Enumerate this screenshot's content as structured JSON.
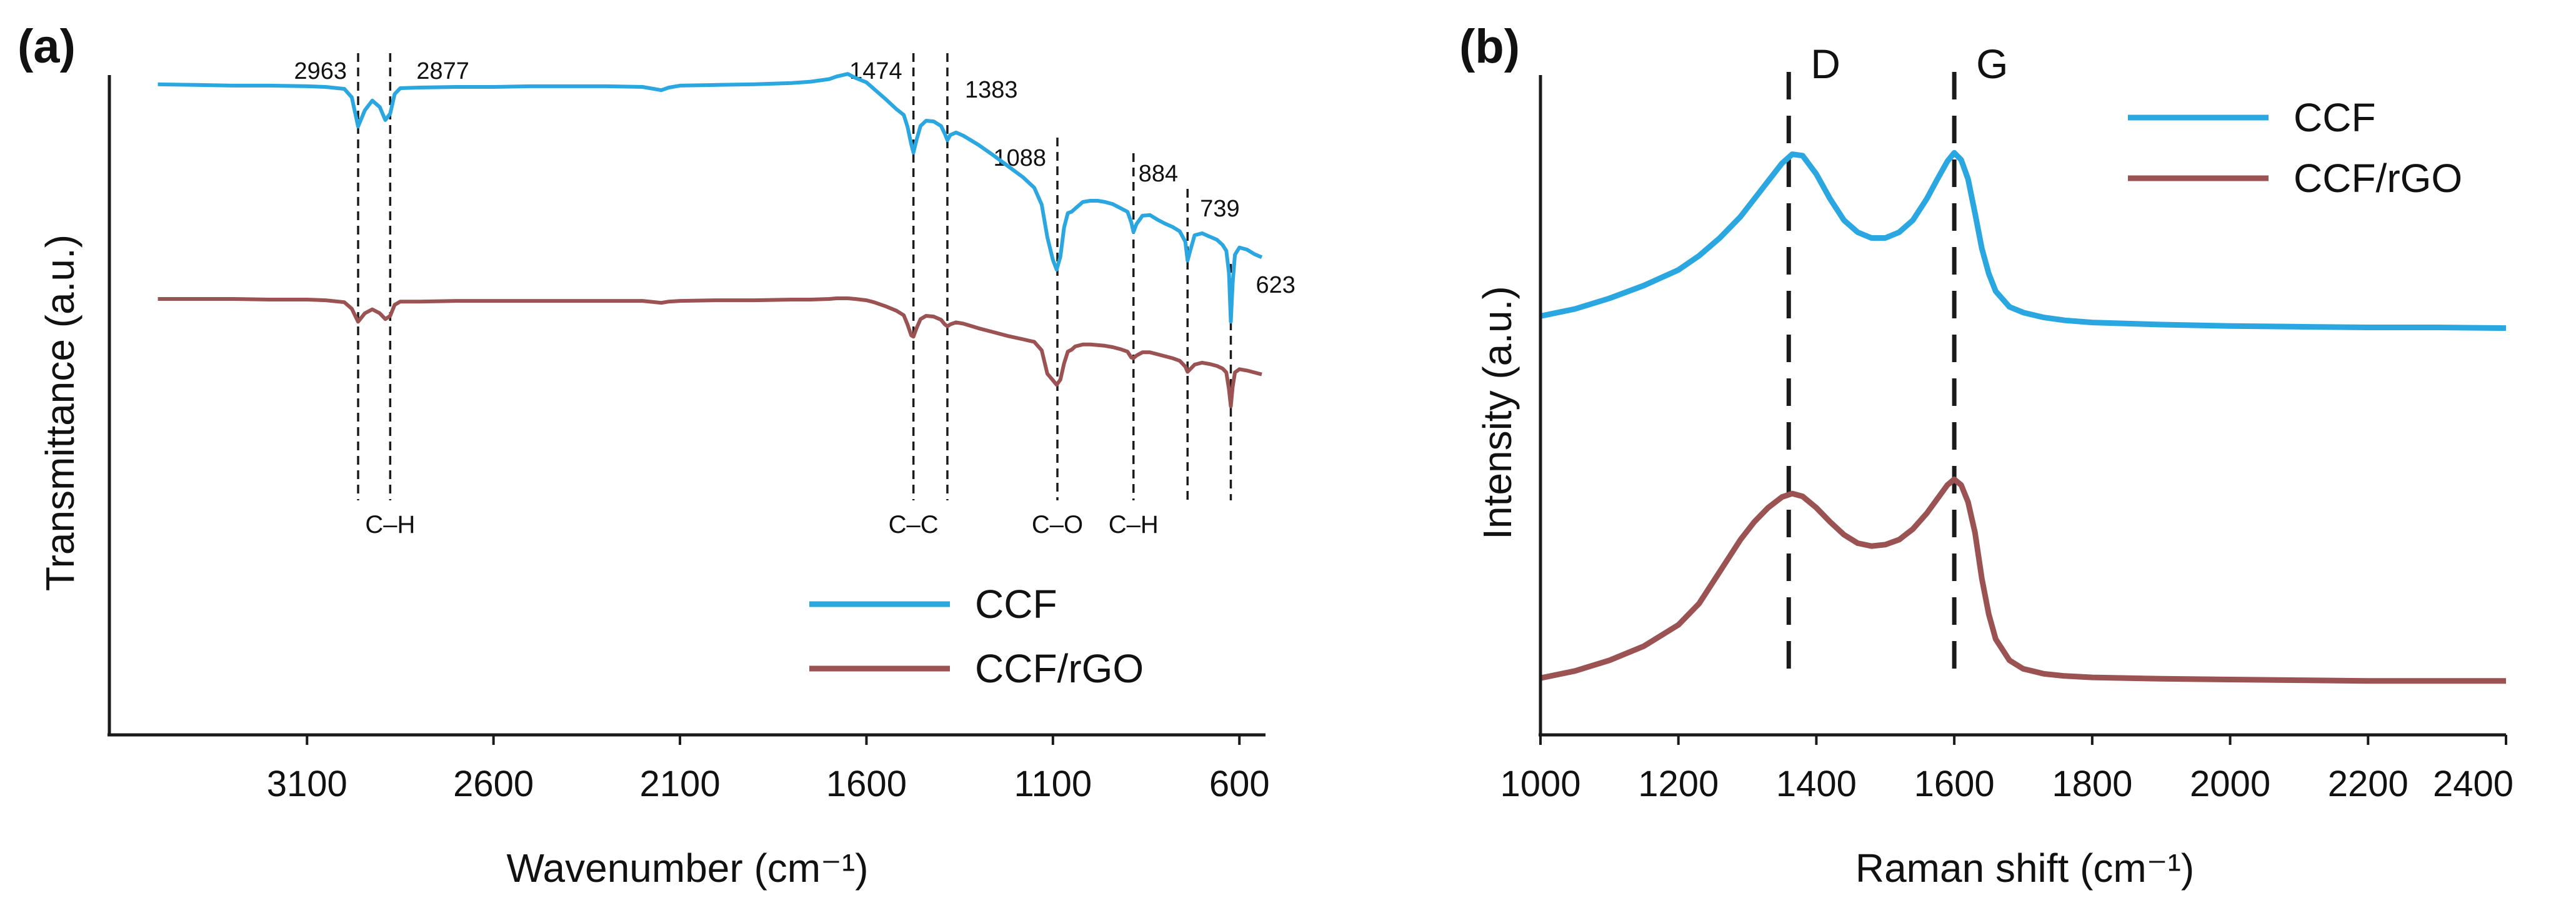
{
  "figure": {
    "colors": {
      "ccf": "#2aa7e0",
      "ccf_rgo": "#9a5252",
      "axis": "#1a1a1a"
    }
  },
  "chart_data": [
    {
      "panel": "(a)",
      "type": "line",
      "title": "",
      "xlabel": "Wavenumber (cm⁻¹)",
      "ylabel": "Transmittance (a.u.)",
      "xlim": [
        3500,
        500
      ],
      "xreversed": true,
      "ylim": [
        0,
        100
      ],
      "y_ticks_shown": false,
      "xticks": [
        3100,
        2600,
        2100,
        1600,
        1100,
        600
      ],
      "xtick_labels": [
        "3100",
        "2600",
        "2100",
        "1600",
        "1100",
        "600"
      ],
      "legend": {
        "position": "bottom-right",
        "entries": [
          "CCF",
          "CCF/rGO"
        ]
      },
      "series": [
        {
          "name": "CCF",
          "color": "#2aa7e0",
          "x": [
            3500,
            3400,
            3300,
            3200,
            3100,
            3050,
            3000,
            2980,
            2963,
            2945,
            2925,
            2905,
            2890,
            2877,
            2865,
            2850,
            2800,
            2700,
            2600,
            2500,
            2400,
            2300,
            2200,
            2150,
            2130,
            2100,
            2000,
            1900,
            1800,
            1750,
            1700,
            1680,
            1650,
            1630,
            1600,
            1580,
            1550,
            1520,
            1500,
            1490,
            1480,
            1474,
            1465,
            1455,
            1440,
            1420,
            1400,
            1390,
            1383,
            1375,
            1360,
            1340,
            1300,
            1260,
            1220,
            1180,
            1150,
            1130,
            1115,
            1100,
            1090,
            1080,
            1070,
            1060,
            1050,
            1040,
            1020,
            1000,
            980,
            960,
            940,
            920,
            900,
            890,
            884,
            876,
            860,
            840,
            820,
            800,
            780,
            760,
            745,
            739,
            732,
            720,
            700,
            680,
            660,
            645,
            635,
            628,
            623,
            618,
            612,
            600,
            580,
            560,
            540
          ],
          "y": [
            88.0,
            87.9,
            87.8,
            87.8,
            87.7,
            87.6,
            87.3,
            86.0,
            81.5,
            84.0,
            85.5,
            84.5,
            82.5,
            83.5,
            86.5,
            87.4,
            87.5,
            87.6,
            87.6,
            87.7,
            87.7,
            87.7,
            87.6,
            87.1,
            87.5,
            87.8,
            87.9,
            88.0,
            88.2,
            88.4,
            88.8,
            89.2,
            89.6,
            89.0,
            88.3,
            87.3,
            85.8,
            84.2,
            83.3,
            81.5,
            78.8,
            77.5,
            79.6,
            81.6,
            82.4,
            82.3,
            81.6,
            80.4,
            79.4,
            80.2,
            80.6,
            80.1,
            78.7,
            77.1,
            75.4,
            73.7,
            72.1,
            69.5,
            64.5,
            61.0,
            59.5,
            61.5,
            66.0,
            68.2,
            68.4,
            68.9,
            69.9,
            70.1,
            70.1,
            69.9,
            69.6,
            69.0,
            68.4,
            66.8,
            65.3,
            66.5,
            67.8,
            67.9,
            67.2,
            66.6,
            66.1,
            65.4,
            63.8,
            60.9,
            62.4,
            64.8,
            65.1,
            64.6,
            64.1,
            63.3,
            62.4,
            59.0,
            51.5,
            57.5,
            61.8,
            62.9,
            62.6,
            61.9,
            61.4
          ]
        },
        {
          "name": "CCF/rGO",
          "color": "#9a5252",
          "x": [
            3500,
            3400,
            3300,
            3200,
            3100,
            3050,
            3000,
            2980,
            2963,
            2945,
            2925,
            2905,
            2890,
            2877,
            2865,
            2850,
            2800,
            2700,
            2600,
            2500,
            2400,
            2300,
            2200,
            2150,
            2130,
            2100,
            2000,
            1900,
            1800,
            1750,
            1700,
            1680,
            1650,
            1630,
            1600,
            1580,
            1550,
            1520,
            1500,
            1490,
            1480,
            1474,
            1465,
            1455,
            1440,
            1420,
            1400,
            1390,
            1383,
            1375,
            1360,
            1340,
            1300,
            1260,
            1220,
            1180,
            1150,
            1130,
            1115,
            1100,
            1090,
            1080,
            1070,
            1060,
            1050,
            1040,
            1020,
            1000,
            980,
            960,
            940,
            920,
            900,
            890,
            884,
            876,
            860,
            840,
            820,
            800,
            780,
            760,
            745,
            739,
            732,
            720,
            700,
            680,
            660,
            645,
            635,
            628,
            623,
            618,
            612,
            600,
            580,
            560,
            540
          ],
          "y": [
            55.0,
            55.0,
            55.0,
            54.9,
            54.9,
            54.8,
            54.5,
            53.5,
            51.5,
            52.8,
            53.4,
            52.8,
            51.9,
            52.4,
            54.1,
            54.6,
            54.6,
            54.7,
            54.7,
            54.7,
            54.7,
            54.7,
            54.7,
            54.4,
            54.6,
            54.7,
            54.8,
            54.8,
            54.9,
            54.9,
            55.0,
            55.1,
            55.1,
            55.0,
            54.8,
            54.5,
            53.9,
            53.2,
            52.5,
            51.1,
            49.4,
            49.2,
            50.6,
            51.9,
            52.4,
            52.3,
            51.8,
            51.1,
            50.8,
            51.1,
            51.4,
            51.2,
            50.5,
            49.9,
            49.3,
            48.8,
            48.4,
            47.1,
            43.5,
            42.5,
            41.8,
            42.6,
            45.1,
            46.9,
            47.2,
            47.7,
            48.0,
            48.0,
            47.9,
            47.8,
            47.6,
            47.3,
            46.9,
            46.0,
            45.9,
            46.3,
            46.8,
            46.8,
            46.5,
            46.2,
            45.9,
            45.5,
            44.6,
            43.8,
            44.2,
            44.9,
            45.2,
            45.0,
            44.7,
            44.3,
            43.7,
            41.1,
            38.5,
            41.5,
            43.7,
            44.2,
            44.0,
            43.7,
            43.4
          ]
        }
      ],
      "peak_markers": [
        {
          "x": 2963,
          "label": "2963"
        },
        {
          "x": 2877,
          "label": "2877"
        },
        {
          "x": 1474,
          "label": "1474"
        },
        {
          "x": 1383,
          "label": "1383"
        },
        {
          "x": 1088,
          "label": "1088"
        },
        {
          "x": 884,
          "label": "884"
        },
        {
          "x": 739,
          "label": "739"
        },
        {
          "x": 623,
          "label": "623"
        }
      ],
      "bond_labels": [
        {
          "x": 2877,
          "label": "C–H"
        },
        {
          "x": 1474,
          "label": "C–C"
        },
        {
          "x": 1088,
          "label": "C–O"
        },
        {
          "x": 884,
          "label": "C–H"
        }
      ]
    },
    {
      "panel": "(b)",
      "type": "line",
      "title": "",
      "xlabel": "Raman shift (cm⁻¹)",
      "ylabel": "Intensity (a.u.)",
      "xlim": [
        1000,
        2400
      ],
      "ylim": [
        0,
        100
      ],
      "y_ticks_shown": false,
      "xticks": [
        1000,
        1200,
        1400,
        1600,
        1800,
        2000,
        2200,
        2400
      ],
      "xtick_labels": [
        "1000",
        "1200",
        "1400",
        "1600",
        "1800",
        "2000",
        "2200",
        "2400"
      ],
      "legend": {
        "position": "top-right",
        "entries": [
          "CCF",
          "CCF/rGO"
        ]
      },
      "series": [
        {
          "name": "CCF",
          "color": "#2aa7e0",
          "x": [
            1000,
            1050,
            1100,
            1150,
            1200,
            1230,
            1260,
            1290,
            1310,
            1330,
            1350,
            1365,
            1380,
            1400,
            1420,
            1440,
            1460,
            1480,
            1500,
            1520,
            1540,
            1560,
            1575,
            1590,
            1600,
            1610,
            1620,
            1630,
            1640,
            1650,
            1660,
            1680,
            1700,
            1730,
            1760,
            1800,
            1900,
            2000,
            2100,
            2200,
            2300,
            2400
          ],
          "y": [
            59.0,
            60.0,
            61.5,
            63.3,
            65.5,
            67.5,
            70.0,
            73.0,
            75.5,
            78.0,
            80.5,
            81.8,
            81.6,
            79.0,
            75.5,
            72.5,
            70.8,
            70.0,
            70.0,
            70.8,
            72.5,
            75.5,
            78.2,
            80.8,
            82.0,
            81.0,
            78.3,
            73.5,
            68.5,
            65.0,
            62.5,
            60.3,
            59.5,
            58.8,
            58.4,
            58.1,
            57.8,
            57.6,
            57.5,
            57.4,
            57.4,
            57.3
          ]
        },
        {
          "name": "CCF/rGO",
          "color": "#9a5252",
          "x": [
            1000,
            1050,
            1100,
            1150,
            1200,
            1230,
            1260,
            1290,
            1310,
            1330,
            1350,
            1365,
            1380,
            1400,
            1420,
            1440,
            1460,
            1480,
            1500,
            1520,
            1540,
            1560,
            1575,
            1590,
            1600,
            1610,
            1620,
            1630,
            1640,
            1650,
            1660,
            1680,
            1700,
            1730,
            1760,
            1800,
            1900,
            2000,
            2100,
            2200,
            2300,
            2400
          ],
          "y": [
            8.0,
            9.0,
            10.5,
            12.5,
            15.5,
            18.5,
            23.0,
            27.5,
            30.0,
            32.0,
            33.5,
            34.0,
            33.6,
            32.0,
            30.0,
            28.2,
            27.0,
            26.6,
            26.8,
            27.5,
            29.0,
            31.2,
            33.2,
            35.2,
            36.0,
            35.2,
            32.8,
            28.5,
            22.0,
            17.0,
            13.5,
            10.5,
            9.3,
            8.6,
            8.3,
            8.1,
            7.9,
            7.8,
            7.7,
            7.6,
            7.6,
            7.6
          ]
        }
      ],
      "band_markers": [
        {
          "x": 1360,
          "label": "D"
        },
        {
          "x": 1600,
          "label": "G"
        }
      ]
    }
  ]
}
